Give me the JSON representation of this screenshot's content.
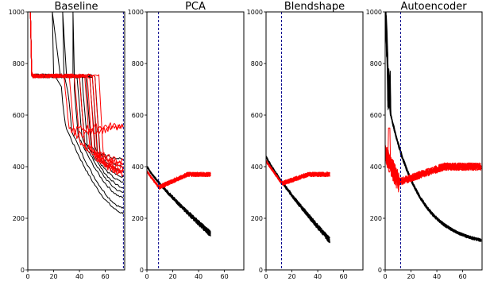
{
  "figure": {
    "panels": [
      {
        "title": "Baseline"
      },
      {
        "title": "PCA"
      },
      {
        "title": "Blendshape"
      },
      {
        "title": "Autoencoder"
      }
    ],
    "colors": {
      "black_series": "#000000",
      "red_series": "#ff0000",
      "marker_line": "#00008b"
    }
  },
  "chart_data": [
    {
      "type": "line",
      "title": "Baseline",
      "xlim": [
        0,
        75
      ],
      "ylim": [
        0,
        1000
      ],
      "xticks": [
        0,
        20,
        40,
        60
      ],
      "yticks": [
        0,
        200,
        400,
        600,
        800,
        1000
      ],
      "vertical_marker_x": 74,
      "series_groups": [
        {
          "color": "#000000",
          "count": 10,
          "x_end": 74,
          "start": 750,
          "plateau_until": [
            25,
            30,
            35,
            38,
            40,
            42,
            45,
            48,
            50,
            52
          ],
          "drop_to": [
            560,
            540,
            520,
            510,
            500,
            490,
            480,
            470,
            460,
            450
          ],
          "final": [
            220,
            240,
            280,
            300,
            320,
            340,
            360,
            380,
            400,
            430
          ]
        },
        {
          "color": "#ff0000",
          "count": 10,
          "x_end": 74,
          "start": 750,
          "plateau_until": [
            28,
            32,
            36,
            40,
            44,
            46,
            48,
            50,
            52,
            55
          ],
          "drop_to": [
            540,
            520,
            500,
            480,
            470,
            450,
            440,
            430,
            420,
            410
          ],
          "final": [
            560,
            550,
            420,
            410,
            400,
            395,
            390,
            385,
            380,
            375
          ]
        }
      ]
    },
    {
      "type": "line",
      "title": "PCA",
      "xlim": [
        0,
        75
      ],
      "ylim": [
        0,
        1000
      ],
      "xticks": [
        0,
        20,
        40,
        60
      ],
      "yticks": [
        0,
        200,
        400,
        600,
        800,
        1000
      ],
      "vertical_marker_x": 9,
      "series_groups": [
        {
          "color": "#000000",
          "count": 10,
          "x_end": 49,
          "start": 400,
          "final": 140
        },
        {
          "color": "#ff0000",
          "count": 10,
          "x_end": 49,
          "start": 380,
          "min": 320,
          "min_x": 9,
          "final": 370
        }
      ]
    },
    {
      "type": "line",
      "title": "Blendshape",
      "xlim": [
        0,
        75
      ],
      "ylim": [
        0,
        1000
      ],
      "xticks": [
        0,
        20,
        40,
        60
      ],
      "yticks": [
        0,
        200,
        400,
        600,
        800,
        1000
      ],
      "vertical_marker_x": 12,
      "series_groups": [
        {
          "color": "#000000",
          "count": 10,
          "x_end": 49,
          "start": 440,
          "final": 115
        },
        {
          "color": "#ff0000",
          "count": 10,
          "x_end": 49,
          "start": 420,
          "min": 335,
          "min_x": 12,
          "final": 370
        }
      ]
    },
    {
      "type": "line",
      "title": "Autoencoder",
      "xlim": [
        0,
        75
      ],
      "ylim": [
        0,
        1000
      ],
      "xticks": [
        0,
        20,
        40,
        60
      ],
      "yticks": [
        0,
        200,
        400,
        600,
        800,
        1000
      ],
      "vertical_marker_x": 12,
      "series_groups": [
        {
          "color": "#000000",
          "count": 10,
          "x_end": 74,
          "start": 700,
          "final": 90
        },
        {
          "color": "#ff0000",
          "count": 10,
          "x_end": 74,
          "start": 450,
          "min": 340,
          "min_x": 10,
          "final": 400
        }
      ]
    }
  ]
}
